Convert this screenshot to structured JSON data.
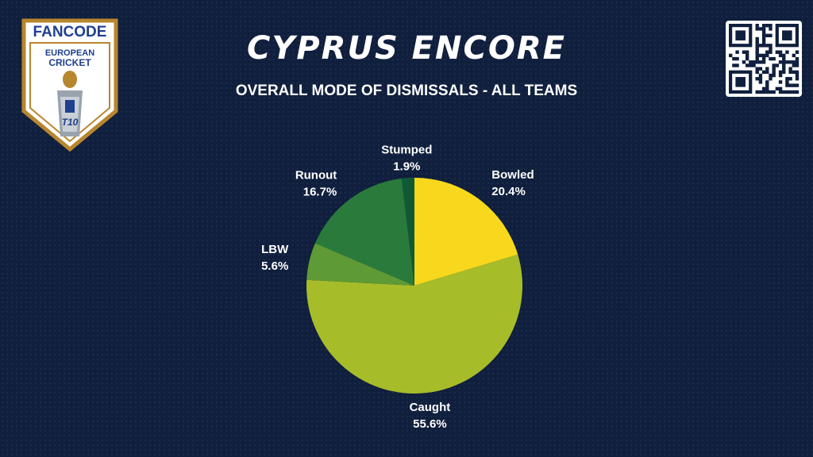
{
  "header": {
    "title": "CYPRUS ENCORE",
    "subtitle": "OVERALL MODE OF DISMISSALS - ALL TEAMS"
  },
  "logo": {
    "brand": "FANCODE",
    "line1": "EUROPEAN",
    "line2": "CRICKET",
    "badge": "T10",
    "colors": {
      "fan": "#e8382d",
      "code": "#1f3f8f",
      "border": "#b8862e"
    }
  },
  "qr_icon": "qr-code-icon",
  "chart_data": {
    "type": "pie",
    "title": "OVERALL MODE OF DISMISSALS - ALL TEAMS",
    "slices": [
      {
        "label": "Bowled",
        "value": 20.4,
        "color": "#f7d81c"
      },
      {
        "label": "Caught",
        "value": 55.6,
        "color": "#a7bc29"
      },
      {
        "label": "LBW",
        "value": 5.6,
        "color": "#5e9a35"
      },
      {
        "label": "Runout",
        "value": 16.7,
        "color": "#2a7a3c"
      },
      {
        "label": "Stumped",
        "value": 1.9,
        "color": "#0f5a35"
      }
    ],
    "value_suffix": "%",
    "start": "12 o'clock",
    "direction": "clockwise",
    "legend": "none (labels outside slices)"
  }
}
